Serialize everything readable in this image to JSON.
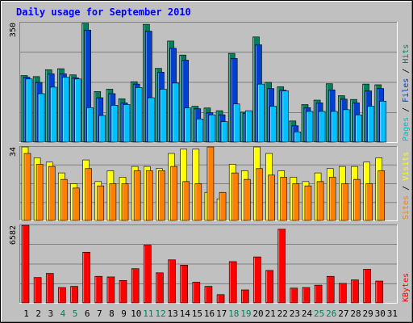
{
  "chart_data": [
    {
      "type": "bar",
      "title": "Daily usage for September 2010",
      "categories": [
        "1",
        "2",
        "3",
        "4",
        "5",
        "6",
        "7",
        "8",
        "9",
        "10",
        "11",
        "12",
        "13",
        "14",
        "15",
        "16",
        "17",
        "18",
        "19",
        "20",
        "21",
        "22",
        "23",
        "24",
        "25",
        "26",
        "27",
        "28",
        "29",
        "30",
        "31"
      ],
      "weekend_days": [
        4,
        5,
        11,
        12,
        18,
        19,
        25,
        26
      ],
      "ymax_label": "350",
      "ymax": 350,
      "right_labels": [
        {
          "text": "Pages",
          "color": "#00c0c0"
        },
        {
          "text": " / ",
          "color": "#000000"
        },
        {
          "text": "Files",
          "color": "#0040d0"
        },
        {
          "text": " / ",
          "color": "#000000"
        },
        {
          "text": "Hits",
          "color": "#00805c"
        }
      ],
      "series": [
        {
          "name": "Hits",
          "color": "#00805c",
          "values": [
            195,
            192,
            212,
            215,
            197,
            348,
            148,
            155,
            127,
            177,
            345,
            216,
            296,
            255,
            105,
            100,
            92,
            260,
            88,
            308,
            175,
            162,
            62,
            110,
            123,
            171,
            136,
            125,
            170,
            168,
            0
          ]
        },
        {
          "name": "Files",
          "color": "#0040d0",
          "values": [
            190,
            175,
            200,
            200,
            188,
            328,
            130,
            142,
            115,
            170,
            325,
            205,
            275,
            240,
            98,
            86,
            80,
            245,
            85,
            285,
            157,
            152,
            48,
            101,
            115,
            153,
            126,
            115,
            150,
            157,
            0
          ]
        },
        {
          "name": "Pages",
          "color": "#00c0ff",
          "values": [
            185,
            142,
            161,
            190,
            185,
            101,
            78,
            108,
            110,
            160,
            130,
            155,
            173,
            100,
            68,
            80,
            60,
            112,
            92,
            170,
            105,
            150,
            30,
            90,
            90,
            90,
            95,
            80,
            105,
            120,
            0
          ]
        }
      ]
    },
    {
      "type": "bar",
      "ymax_label": "34",
      "ymax": 34,
      "right_labels": [
        {
          "text": "Sites",
          "color": "#ff8000"
        },
        {
          "text": " / ",
          "color": "#000000"
        },
        {
          "text": "Visits",
          "color": "#ffff00"
        }
      ],
      "series": [
        {
          "name": "Visits",
          "color": "#ffff00",
          "values": [
            34,
            29,
            27,
            22,
            17,
            28,
            18,
            23,
            20,
            25,
            25,
            24,
            31,
            33,
            33,
            13,
            10,
            26,
            23,
            34,
            31,
            23,
            20,
            18,
            22,
            24,
            25,
            25,
            27,
            29,
            0
          ]
        },
        {
          "name": "Sites",
          "color": "#ff8000",
          "values": [
            31,
            26,
            25,
            19,
            15,
            24,
            16,
            17,
            17,
            23,
            23,
            23,
            25,
            18,
            17,
            34,
            13,
            22,
            19,
            24,
            21,
            20,
            17,
            16,
            18,
            20,
            17,
            19,
            17,
            23,
            0
          ]
        }
      ]
    },
    {
      "type": "bar",
      "ymax_label": "6582",
      "ymax": 6582,
      "right_labels": [
        {
          "text": "KBytes",
          "color": "#ff0000"
        }
      ],
      "series": [
        {
          "name": "KBytes",
          "color": "#ff0000",
          "values": [
            6582,
            2150,
            2500,
            1300,
            1400,
            4300,
            2250,
            2200,
            1900,
            2900,
            4900,
            2550,
            3650,
            3200,
            1750,
            1400,
            700,
            3500,
            1100,
            3900,
            2750,
            6250,
            1250,
            1300,
            1500,
            2250,
            1650,
            1950,
            2850,
            1850,
            0
          ]
        }
      ]
    }
  ],
  "colors": {
    "background": "#c0c0c0",
    "title": "#0000ff",
    "weekday_label": "#000000",
    "weekend_label": "#00805c"
  }
}
